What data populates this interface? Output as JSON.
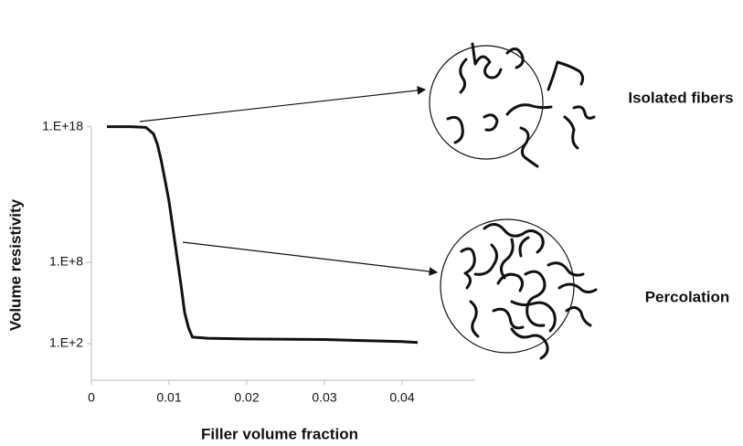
{
  "chart_data": {
    "type": "line",
    "x_label": "Filler volume fraction",
    "y_label": "Volume resistivity",
    "x": [
      0.002,
      0.005,
      0.007,
      0.008,
      0.0085,
      0.009,
      0.0095,
      0.01,
      0.0105,
      0.011,
      0.0115,
      0.012,
      0.0125,
      0.013,
      0.015,
      0.02,
      0.03,
      0.04,
      0.042
    ],
    "values": [
      1e+18,
      1e+18,
      9e+17,
      3e+17,
      5e+16,
      3000000000000000.0,
      100000000000000.0,
      3000000000000.0,
      30000000000.0,
      300000000.0,
      3000000.0,
      20000.0,
      1500,
      300,
      250,
      220,
      200,
      140,
      120
    ],
    "color": "#111111",
    "xlim": [
      0,
      0.048
    ],
    "xticks": [
      0,
      0.01,
      0.02,
      0.03,
      0.04
    ],
    "ylim": [
      0.2,
      1e+20
    ],
    "y_scale": "log",
    "yticks": [
      {
        "value": 100,
        "label": "1.E+2"
      },
      {
        "value": 100000000,
        "label": "1.E+8"
      },
      {
        "value": 1e+18,
        "label": "1.E+18"
      }
    ],
    "grid": false,
    "annotations": [
      "Isolated fibers",
      "Percolation"
    ]
  }
}
